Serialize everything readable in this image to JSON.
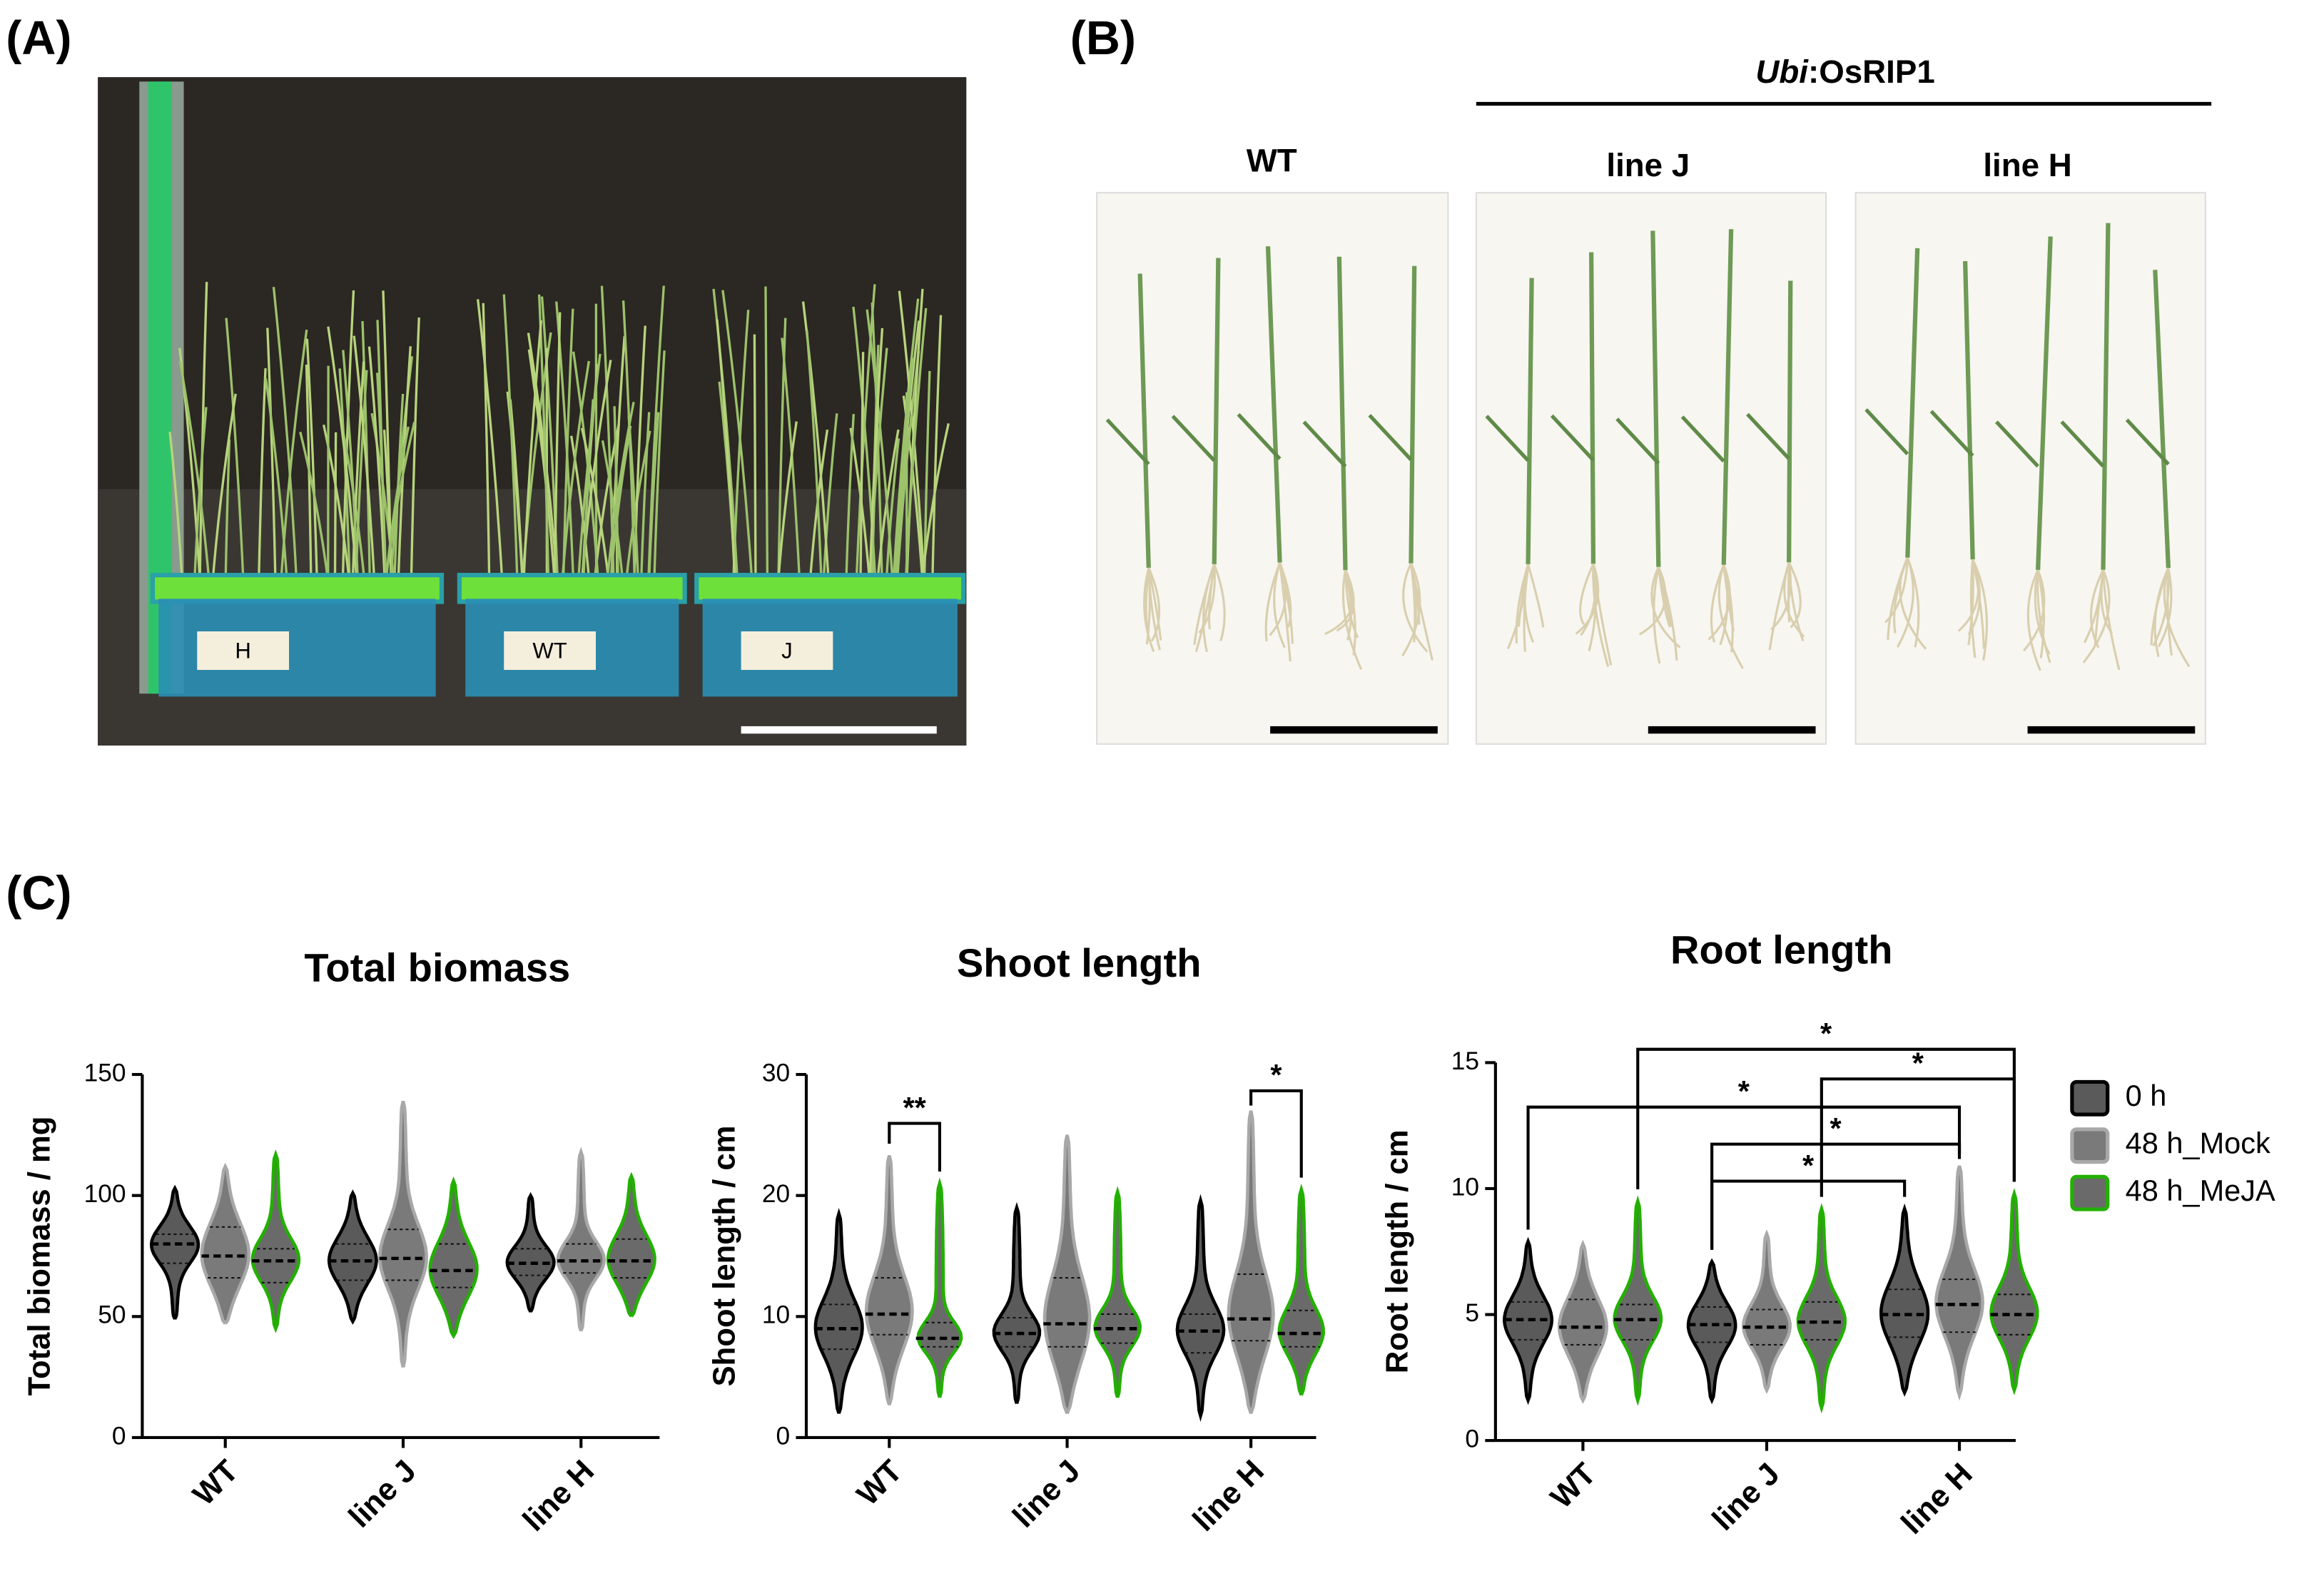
{
  "figure": {
    "panel_labels": [
      "(A)",
      "(B)",
      "(C)"
    ],
    "construct": {
      "prefix": "Ubi",
      "name": ":OsRIP1"
    },
    "photo_b_labels": [
      "WT",
      "line J",
      "line H"
    ],
    "tray_labels": [
      "H",
      "WT",
      "J"
    ]
  },
  "chart_data": [
    {
      "type": "violin",
      "title": "Total biomass",
      "y_label": "Total biomass / mg",
      "categories": [
        "WT",
        "line J",
        "line H"
      ],
      "ylim": [
        0,
        150
      ],
      "yticks": [
        0,
        50,
        100,
        150
      ],
      "series": [
        {
          "name": "0 h",
          "color": "#5a5a5a",
          "edge": "#000000",
          "median": [
            80,
            73,
            72
          ],
          "q1": [
            72,
            65,
            67
          ],
          "q3": [
            84,
            80,
            78
          ],
          "min": [
            49,
            48,
            52
          ],
          "max": [
            103,
            101,
            100
          ]
        },
        {
          "name": "48 h_Mock",
          "color": "#7a7a7a",
          "edge": "#a8a8a8",
          "median": [
            75,
            74,
            73
          ],
          "q1": [
            66,
            65,
            68
          ],
          "q3": [
            87,
            86,
            80
          ],
          "min": [
            47,
            29,
            44
          ],
          "max": [
            112,
            139,
            118
          ]
        },
        {
          "name": "48 h_MeJA",
          "color": "#6a6a6a",
          "edge": "#22b000",
          "median": [
            73,
            69,
            73
          ],
          "q1": [
            64,
            62,
            66
          ],
          "q3": [
            78,
            80,
            82
          ],
          "min": [
            45,
            42,
            50
          ],
          "max": [
            117,
            106,
            108
          ]
        }
      ]
    },
    {
      "type": "violin",
      "title": "Shoot length",
      "y_label": "Shoot length / cm",
      "categories": [
        "WT",
        "line J",
        "line H"
      ],
      "ylim": [
        0,
        30
      ],
      "yticks": [
        0,
        10,
        20,
        30
      ],
      "annotations": [
        "**",
        "*"
      ],
      "series": [
        {
          "name": "0 h",
          "color": "#5a5a5a",
          "edge": "#000000",
          "median": [
            9,
            8.6,
            8.8
          ],
          "q1": [
            7.3,
            7.5,
            7
          ],
          "q3": [
            11,
            9.9,
            10.2
          ],
          "min": [
            2,
            2.8,
            1.8
          ],
          "max": [
            18.5,
            19,
            19.6
          ]
        },
        {
          "name": "48 h_Mock",
          "color": "#7a7a7a",
          "edge": "#a8a8a8",
          "median": [
            10.2,
            9.4,
            9.8
          ],
          "q1": [
            8.5,
            7.5,
            8
          ],
          "q3": [
            13.2,
            13.2,
            13.5
          ],
          "min": [
            2.7,
            2,
            2
          ],
          "max": [
            23.3,
            25,
            27
          ]
        },
        {
          "name": "48 h_MeJA",
          "color": "#6a6a6a",
          "edge": "#22b000",
          "median": [
            8.2,
            9,
            8.6
          ],
          "q1": [
            7.5,
            7.8,
            7.5
          ],
          "q3": [
            9.5,
            10.2,
            10.5
          ],
          "min": [
            3.3,
            3.3,
            3.5
          ],
          "max": [
            21,
            20.3,
            20.5
          ]
        }
      ]
    },
    {
      "type": "violin",
      "title": "Root length",
      "y_label": "Root length / cm",
      "categories": [
        "WT",
        "line J",
        "line H"
      ],
      "ylim": [
        0,
        15
      ],
      "yticks": [
        0,
        5,
        10,
        15
      ],
      "annotations": [
        "*",
        "*",
        "*",
        "*",
        "*"
      ],
      "legend": "right",
      "series": [
        {
          "name": "0 h",
          "color": "#5a5a5a",
          "edge": "#000000",
          "median": [
            4.8,
            4.6,
            5
          ],
          "q1": [
            4,
            3.9,
            4.1
          ],
          "q3": [
            5.5,
            5.3,
            6
          ],
          "min": [
            1.6,
            1.6,
            1.9
          ],
          "max": [
            7.9,
            7.1,
            9.2
          ]
        },
        {
          "name": "48 h_Mock",
          "color": "#7a7a7a",
          "edge": "#a8a8a8",
          "median": [
            4.5,
            4.5,
            5.4
          ],
          "q1": [
            3.8,
            3.8,
            4.3
          ],
          "q3": [
            5.6,
            5.2,
            6.4
          ],
          "min": [
            1.6,
            2,
            1.8
          ],
          "max": [
            7.8,
            8.2,
            10.9
          ]
        },
        {
          "name": "48 h_MeJA",
          "color": "#6a6a6a",
          "edge": "#22b000",
          "median": [
            4.8,
            4.7,
            5
          ],
          "q1": [
            4,
            4,
            4.2
          ],
          "q3": [
            5.4,
            5.5,
            5.8
          ],
          "min": [
            1.6,
            1.3,
            2
          ],
          "max": [
            9.5,
            9.2,
            9.8
          ]
        }
      ]
    }
  ]
}
